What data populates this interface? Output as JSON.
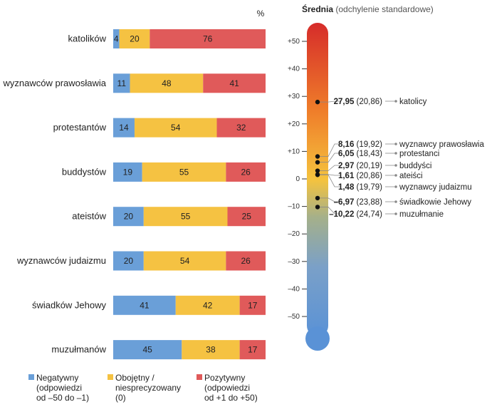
{
  "chart_data": [
    {
      "type": "bar",
      "orientation": "horizontal",
      "stacked": true,
      "unit_label": "%",
      "categories": [
        "katolików",
        "wyznawców prawosławia",
        "protestantów",
        "buddystów",
        "ateistów",
        "wyznawców judaizmu",
        "świadków Jehowy",
        "muzułmanów"
      ],
      "series": [
        {
          "name": "Negatywny",
          "color": "#6a9fd8",
          "values": [
            4,
            11,
            14,
            19,
            20,
            20,
            41,
            45
          ]
        },
        {
          "name": "Obojętny / niesprecyzowany",
          "color": "#f5c242",
          "values": [
            20,
            48,
            54,
            55,
            55,
            54,
            42,
            38
          ]
        },
        {
          "name": "Pozytywny",
          "color": "#e05a5a",
          "values": [
            76,
            41,
            32,
            26,
            25,
            26,
            17,
            17
          ]
        }
      ],
      "legend": [
        {
          "color": "#6a9fd8",
          "line1": "Negatywny",
          "line2": "(odpowiedzi",
          "line3": "od –50 do –1)"
        },
        {
          "color": "#f5c242",
          "line1": "Obojętny /",
          "line2": "niesprecyzowany",
          "line3": "(0)"
        },
        {
          "color": "#e05a5a",
          "line1": "Pozytywny",
          "line2": "(odpowiedzi",
          "line3": "od +1 do +50)"
        }
      ]
    },
    {
      "type": "scatter",
      "style": "thermometer",
      "title": "Średnia",
      "subtitle": "(odchylenie standardowe)",
      "ylim": [
        -50,
        50
      ],
      "ticks": [
        "+50",
        "+40",
        "+30",
        "+20",
        "+10",
        "0",
        "–10",
        "–20",
        "–30",
        "–40",
        "–50"
      ],
      "points": [
        {
          "label": "katolicy",
          "mean": 27.95,
          "mean_text": "27,95",
          "sd_text": "(20,86)"
        },
        {
          "label": "wyznawcy prawosławia",
          "mean": 8.16,
          "mean_text": "8,16",
          "sd_text": "(19,92)"
        },
        {
          "label": "protestanci",
          "mean": 6.05,
          "mean_text": "6,05",
          "sd_text": "(18,43)"
        },
        {
          "label": "buddyści",
          "mean": 2.97,
          "mean_text": "2,97",
          "sd_text": "(20,19)"
        },
        {
          "label": "ateiści",
          "mean": 1.61,
          "mean_text": "1,61",
          "sd_text": "(20,86)"
        },
        {
          "label": "wyznawcy judaizmu",
          "mean": 1.48,
          "mean_text": "1,48",
          "sd_text": "(19,79)"
        },
        {
          "label": "świadkowie Jehowy",
          "mean": -6.97,
          "mean_text": "–6,97",
          "sd_text": "(23,88)"
        },
        {
          "label": "muzułmanie",
          "mean": -10.22,
          "mean_text": "–10,22",
          "sd_text": "(24,74)"
        }
      ]
    }
  ]
}
